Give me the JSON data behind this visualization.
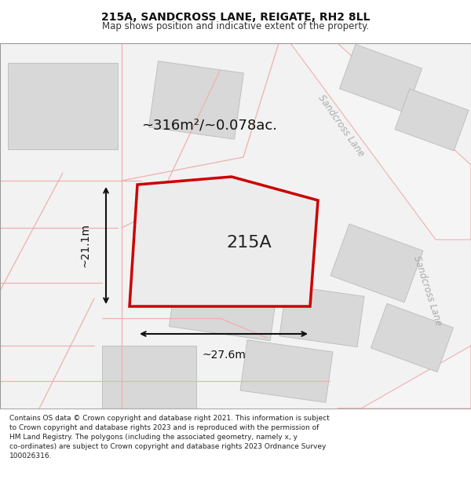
{
  "title": "215A, SANDCROSS LANE, REIGATE, RH2 8LL",
  "subtitle": "Map shows position and indicative extent of the property.",
  "footer_lines": [
    "Contains OS data © Crown copyright and database right 2021. This information is subject to Crown copyright and database rights 2023 and is reproduced with the permission of HM Land Registry. The polygons (including the associated geometry, namely x, y co-ordinates) are subject to Crown copyright and database rights 2023 Ordnance Survey 100026316."
  ],
  "bg_color": "#f5f5f5",
  "map_bg": "#ffffff",
  "title_bg": "#ffffff",
  "footer_bg": "#ffffff",
  "road_color_light": "#f0b0b0",
  "road_color_dark": "#cccccc",
  "plot_outline_color": "#cc0000",
  "plot_fill_color": "#e8e8e8",
  "building_color": "#d8d8d8",
  "text_color": "#333333",
  "area_label": "~316m²/~0.078ac.",
  "plot_label": "215A",
  "dim_width_label": "~27.6m",
  "dim_height_label": "~21.1m",
  "sandcross_lane_label1": "Sandcross Lane",
  "sandcross_lane_label2": "Sandcross Lane"
}
